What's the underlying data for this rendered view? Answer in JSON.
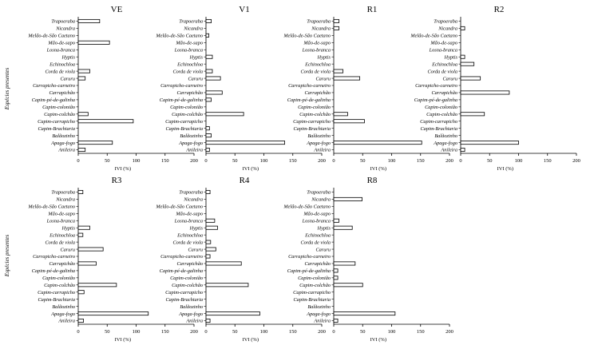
{
  "figure": {
    "ylabel": "Espécies presentes",
    "xlabel": "IVI (%)",
    "categories": [
      "Trapoeraba",
      "Nicandra",
      "Melão-de-São Caetano",
      "Mão-de-sapo",
      "Losna-branca",
      "Hyptis",
      "Echinochloa",
      "Corda de viola",
      "Caruru",
      "Carrapicho-carneiro",
      "Carrapichão",
      "Capim-pé-de-galinha",
      "Capim-colonião",
      "Capim-colchão",
      "Capim-carrapicho",
      "Capim-Brachiaria",
      "Balãozinho",
      "Apaga-fogo",
      "Anileira"
    ],
    "x_ticks": [
      "0",
      "50",
      "100",
      "150",
      "200"
    ]
  },
  "chart_data": [
    {
      "type": "bar",
      "title": "VE",
      "xlabel": "IVI (%)",
      "ylabel": "Espécies presentes",
      "xlim": [
        0,
        200
      ],
      "categories": [
        "Trapoeraba",
        "Nicandra",
        "Melão-de-São Caetano",
        "Mão-de-sapo",
        "Losna-branca",
        "Hyptis",
        "Echinochloa",
        "Corda de viola",
        "Caruru",
        "Carrapicho-carneiro",
        "Carrapichão",
        "Capim-pé-de-galinha",
        "Capim-colonião",
        "Capim-colchão",
        "Capim-carrapicho",
        "Capim-Brachiaria",
        "Balãozinho",
        "Apaga-fogo",
        "Anileira"
      ],
      "values": [
        37,
        0,
        0,
        54,
        0,
        0,
        0,
        20,
        12,
        0,
        0,
        0,
        0,
        17,
        95,
        0,
        0,
        59,
        12
      ]
    },
    {
      "type": "bar",
      "title": "V1",
      "xlabel": "IVI (%)",
      "xlim": [
        0,
        200
      ],
      "categories": [
        "Trapoeraba",
        "Nicandra",
        "Melão-de-São Caetano",
        "Mão-de-sapo",
        "Losna-branca",
        "Hyptis",
        "Echinochloa",
        "Corda de viola",
        "Caruru",
        "Carrapicho-carneiro",
        "Carrapichão",
        "Capim-pé-de-galinha",
        "Capim-colonião",
        "Capim-colchão",
        "Capim-carrapicho",
        "Capim-Brachiaria",
        "Balãozinho",
        "Apaga-fogo",
        "Anileira"
      ],
      "values": [
        9,
        0,
        5,
        0,
        0,
        11,
        0,
        11,
        25,
        0,
        28,
        9,
        0,
        65,
        0,
        6,
        9,
        136,
        6
      ]
    },
    {
      "type": "bar",
      "title": "R1",
      "xlabel": "IVI (%)",
      "xlim": [
        0,
        200
      ],
      "categories": [
        "Trapoeraba",
        "Nicandra",
        "Melão-de-São Caetano",
        "Mão-de-sapo",
        "Losna-branca",
        "Hyptis",
        "Echinochloa",
        "Corda de viola",
        "Caruru",
        "Carrapicho-carneiro",
        "Carrapichão",
        "Capim-pé-de-galinha",
        "Capim-colonião",
        "Capim-colchão",
        "Capim-carrapicho",
        "Capim-Brachiaria",
        "Balãozinho",
        "Apaga-fogo",
        "Anileira"
      ],
      "values": [
        9,
        9,
        0,
        0,
        0,
        0,
        0,
        16,
        45,
        0,
        0,
        0,
        0,
        24,
        53,
        0,
        0,
        152,
        0
      ]
    },
    {
      "type": "bar",
      "title": "R2",
      "xlabel": "IVI (%)",
      "xlim": [
        0,
        200
      ],
      "categories": [
        "Trapoeraba",
        "Nicandra",
        "Melão-de-São Caetano",
        "Mão-de-sapo",
        "Losna-branca",
        "Hyptis",
        "Echinochloa",
        "Corda de viola",
        "Caruru",
        "Carrapicho-carneiro",
        "Carrapichão",
        "Capim-pé-de-galinha",
        "Capim-colonião",
        "Capim-colchão",
        "Capim-carrapicho",
        "Capim-Brachiaria",
        "Balãozinho",
        "Apaga-fogo",
        "Anileira"
      ],
      "values": [
        0,
        7,
        0,
        0,
        0,
        7,
        23,
        0,
        34,
        0,
        84,
        0,
        0,
        41,
        0,
        0,
        0,
        100,
        7
      ]
    },
    {
      "type": "bar",
      "title": "R3",
      "xlabel": "IVI (%)",
      "xlim": [
        0,
        200
      ],
      "categories": [
        "Trapoeraba",
        "Nicandra",
        "Melão-de-São Caetano",
        "Mão-de-sapo",
        "Losna-branca",
        "Hyptis",
        "Echinochloa",
        "Corda de viola",
        "Caruru",
        "Carrapicho-carneiro",
        "Carrapichão",
        "Capim-pé-de-galinha",
        "Capim-colonião",
        "Capim-colchão",
        "Capim-carrapicho",
        "Capim-Brachiaria",
        "Balãozinho",
        "Apaga-fogo",
        "Anileira"
      ],
      "values": [
        8,
        0,
        0,
        0,
        0,
        20,
        8,
        0,
        43,
        0,
        31,
        0,
        0,
        66,
        10,
        0,
        0,
        121,
        9
      ]
    },
    {
      "type": "bar",
      "title": "R4",
      "xlabel": "IVI (%)",
      "xlim": [
        0,
        200
      ],
      "categories": [
        "Trapoeraba",
        "Nicandra",
        "Melão-de-São Caetano",
        "Mão-de-sapo",
        "Losna-branca",
        "Hyptis",
        "Echinochloa",
        "Corda de viola",
        "Caruru",
        "Carrapicho-carneiro",
        "Carrapichão",
        "Capim-pé-de-galinha",
        "Capim-colonião",
        "Capim-colchão",
        "Capim-carrapicho",
        "Capim-Brachiaria",
        "Balãozinho",
        "Apaga-fogo",
        "Anileira"
      ],
      "values": [
        7,
        0,
        0,
        0,
        15,
        20,
        0,
        8,
        17,
        7,
        61,
        0,
        0,
        73,
        0,
        0,
        0,
        93,
        7
      ]
    },
    {
      "type": "bar",
      "title": "R8",
      "xlabel": "IVI (%)",
      "xlim": [
        0,
        200
      ],
      "categories": [
        "Trapoeraba",
        "Nicandra",
        "Melão-de-São Caetano",
        "Mão-de-sapo",
        "Losna-branca",
        "Hyptis",
        "Echinochloa",
        "Corda de viola",
        "Caruru",
        "Carrapicho-carneiro",
        "Carrapichão",
        "Capim-pé-de-galinha",
        "Capim-colonião",
        "Capim-colchão",
        "Capim-carrapicho",
        "Capim-Brachiaria",
        "Balãozinho",
        "Apaga-fogo",
        "Anileira"
      ],
      "values": [
        0,
        49,
        0,
        0,
        9,
        32,
        0,
        0,
        0,
        0,
        37,
        7,
        7,
        50,
        0,
        0,
        0,
        106,
        7
      ]
    }
  ]
}
